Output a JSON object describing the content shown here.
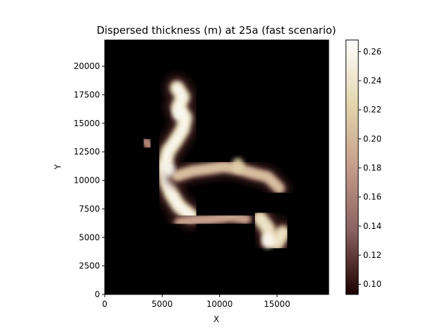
{
  "chart_data": {
    "type": "heatmap",
    "title": "Dispersed thickness (m) at 25a (fast scenario)",
    "xlabel": "X",
    "ylabel": "Y",
    "xlim": [
      0,
      19500
    ],
    "ylim": [
      0,
      22300
    ],
    "x_ticks": [
      0,
      5000,
      10000,
      15000
    ],
    "x_tick_labels": [
      "0",
      "5000",
      "10000",
      "15000"
    ],
    "y_ticks": [
      0,
      2500,
      5000,
      7500,
      10000,
      12500,
      15000,
      17500,
      20000
    ],
    "y_tick_labels": [
      "0",
      "2500",
      "5000",
      "7500",
      "10000",
      "12500",
      "15000",
      "17500",
      "20000"
    ],
    "colorbar": {
      "colormap": "pink",
      "vmin": 0.093,
      "vmax": 0.268,
      "ticks": [
        0.1,
        0.12,
        0.14,
        0.16,
        0.18,
        0.2,
        0.22,
        0.24,
        0.26
      ],
      "tick_labels": [
        "0.10",
        "0.12",
        "0.14",
        "0.16",
        "0.18",
        "0.20",
        "0.22",
        "0.24",
        "0.26"
      ]
    },
    "features": [
      {
        "name": "main ridge",
        "points": [
          [
            6300,
            18100
          ],
          [
            6800,
            17300
          ],
          [
            6400,
            16400
          ],
          [
            7000,
            15500
          ],
          [
            6800,
            14500
          ],
          [
            6200,
            13500
          ],
          [
            5500,
            12500
          ],
          [
            5200,
            11200
          ],
          [
            5400,
            9800
          ],
          [
            5800,
            8800
          ],
          [
            6500,
            7700
          ],
          [
            7500,
            6900
          ]
        ],
        "width": 900,
        "value": 0.26
      },
      {
        "name": "upper ridge",
        "points": [
          [
            6300,
            10400
          ],
          [
            7600,
            10800
          ],
          [
            9000,
            11000
          ],
          [
            10400,
            11200
          ],
          [
            11600,
            11000
          ],
          [
            13000,
            10600
          ],
          [
            14200,
            10300
          ],
          [
            15200,
            9300
          ]
        ],
        "width": 700,
        "value": 0.21
      },
      {
        "name": "lower ridge",
        "points": [
          [
            6500,
            6300
          ],
          [
            8000,
            6500
          ],
          [
            9500,
            6600
          ],
          [
            11000,
            6800
          ],
          [
            12300,
            6600
          ]
        ],
        "width": 600,
        "value": 0.19
      },
      {
        "name": "east blob",
        "points": [
          [
            13500,
            6700
          ],
          [
            14200,
            5800
          ],
          [
            14400,
            4800
          ],
          [
            15000,
            4500
          ],
          [
            15500,
            5400
          ]
        ],
        "width": 900,
        "value": 0.24
      },
      {
        "name": "west spot",
        "points": [
          [
            3500,
            13500
          ],
          [
            3900,
            13000
          ]
        ],
        "width": 500,
        "value": 0.17
      }
    ],
    "peaks": [
      {
        "x": 6400,
        "y": 15900,
        "value": 0.26
      },
      {
        "x": 5600,
        "y": 11000,
        "value": 0.26
      },
      {
        "x": 14200,
        "y": 4700,
        "value": 0.26
      },
      {
        "x": 11600,
        "y": 11300,
        "value": 0.22
      }
    ]
  }
}
